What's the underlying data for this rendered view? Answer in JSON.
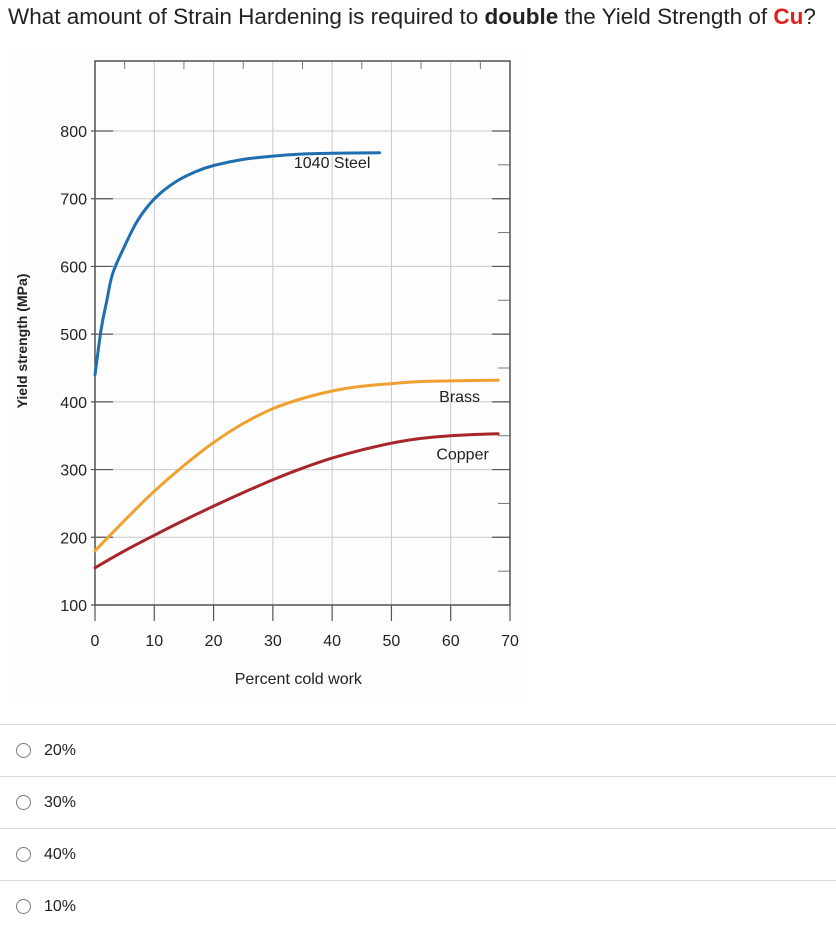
{
  "question": {
    "pre": "What amount of Strain Hardening is required to ",
    "emph": "double",
    "mid": " the Yield Strength of ",
    "element": "Cu",
    "post": "?"
  },
  "chart_data": {
    "type": "line",
    "title": "",
    "xlabel": "Percent cold work",
    "ylabel": "Yield strength (MPa)",
    "xlim": [
      0,
      70
    ],
    "ylim": [
      100,
      800
    ],
    "xticks": [
      0,
      10,
      20,
      30,
      40,
      50,
      60,
      70
    ],
    "yticks": [
      100,
      200,
      300,
      400,
      500,
      600,
      700,
      800
    ],
    "grid": true,
    "series": [
      {
        "name": "1040 Steel",
        "color": "#1f6fb0",
        "x": [
          0,
          1,
          2,
          3,
          5,
          7,
          9,
          11,
          14,
          17,
          20,
          25,
          30,
          35,
          40,
          48
        ],
        "y": [
          440,
          505,
          550,
          590,
          630,
          665,
          690,
          708,
          727,
          740,
          749,
          758,
          763,
          766,
          767,
          768
        ]
      },
      {
        "name": "Brass",
        "color": "#f0a030",
        "x": [
          0,
          5,
          10,
          15,
          20,
          25,
          30,
          35,
          40,
          45,
          50,
          55,
          60,
          68
        ],
        "y": [
          180,
          225,
          268,
          306,
          340,
          368,
          390,
          405,
          416,
          423,
          427,
          430,
          431,
          432
        ]
      },
      {
        "name": "Copper",
        "color": "#a8262a",
        "x": [
          0,
          5,
          10,
          15,
          20,
          25,
          30,
          35,
          40,
          45,
          50,
          55,
          60,
          68
        ],
        "y": [
          155,
          180,
          203,
          225,
          246,
          266,
          285,
          302,
          317,
          329,
          339,
          346,
          350,
          353
        ]
      }
    ]
  },
  "options": [
    {
      "label": "20%"
    },
    {
      "label": "30%"
    },
    {
      "label": "40%"
    },
    {
      "label": "10%"
    }
  ]
}
